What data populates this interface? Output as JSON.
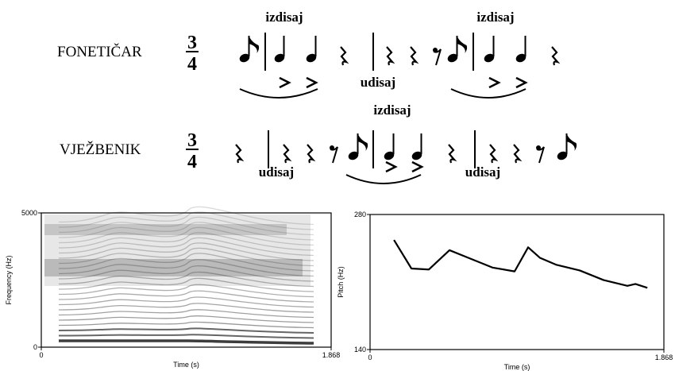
{
  "notation": {
    "rows": [
      {
        "label": "FONETIČAR",
        "meter": {
          "top": "3",
          "bottom": "4"
        }
      },
      {
        "label": "VJEŽBENIK",
        "meter": {
          "top": "3",
          "bottom": "4"
        }
      }
    ],
    "annotations": [
      "izdisaj",
      "izdisaj",
      "udisaj",
      "izdisaj",
      "udisaj",
      "udisaj"
    ]
  },
  "chart_data": [
    {
      "type": "spectrogram",
      "x_label": "Time (s)",
      "y_label": "Frequency (Hz)",
      "xlim": [
        0,
        1.868
      ],
      "ylim": [
        0,
        5000
      ],
      "xticks": [
        0,
        1.868
      ],
      "yticks": [
        0,
        5000
      ]
    },
    {
      "type": "line",
      "x_label": "Time (s)",
      "y_label": "Pitch (Hz)",
      "color": "#000000",
      "x": [
        0.152,
        0.263,
        0.374,
        0.505,
        0.626,
        0.778,
        0.919,
        1.005,
        1.081,
        1.182,
        1.333,
        1.485,
        1.636,
        1.687,
        1.763
      ],
      "values": [
        253.6,
        224,
        223,
        243,
        235,
        225,
        221,
        246,
        235,
        228,
        222,
        212,
        206,
        208,
        204
      ],
      "xlim": [
        0,
        1.868
      ],
      "ylim": [
        140,
        280
      ],
      "xticks": [
        0,
        1.868
      ],
      "yticks": [
        140,
        280
      ]
    }
  ]
}
